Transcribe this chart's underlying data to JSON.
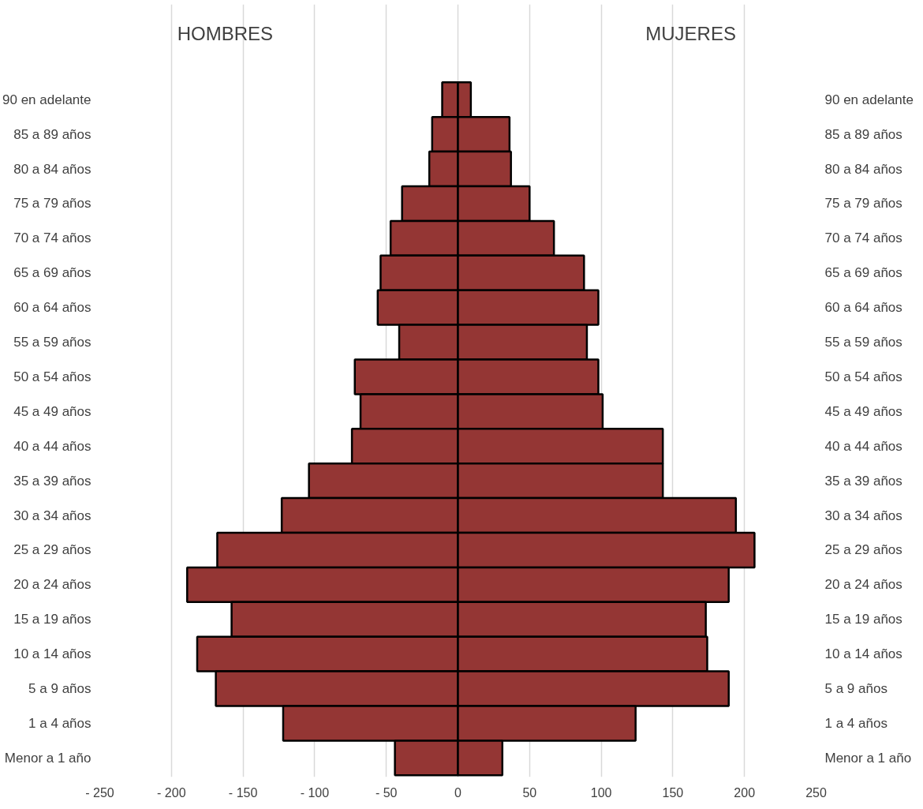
{
  "chart_data": {
    "type": "bar",
    "orientation": "horizontal",
    "grid": "x",
    "stacked": true,
    "annotations": [
      "HOMBRES",
      "MUJERES"
    ],
    "categories": [
      "90 en adelante",
      "85 a 89 años",
      "80 a 84 años",
      "75 a 79 años",
      "70 a 74 años",
      "65 a 69 años",
      "60 a 64 años",
      "55 a 59 años",
      "50 a 54 años",
      "45 a 49 años",
      "40 a 44 años",
      "35 a 39 años",
      "30 a 34 años",
      "25 a 29 años",
      "20 a 24 años",
      "15 a 19 años",
      "10 a 14 años",
      "5 a 9 años",
      "1 a 4 años",
      "Menor a 1 año"
    ],
    "series": [
      {
        "color": "#943634",
        "values": [
          -11,
          -18,
          -20,
          -39,
          -47,
          -54,
          -56,
          -41,
          -72,
          -68,
          -74,
          -104,
          -123,
          -168,
          -189,
          -158,
          -182,
          -169,
          -122,
          -44
        ]
      },
      {
        "color": "#943634",
        "values": [
          9,
          36,
          37,
          50,
          67,
          88,
          98,
          90,
          98,
          101,
          143,
          143,
          194,
          207,
          189,
          173,
          174,
          189,
          124,
          31
        ]
      }
    ],
    "xlim": [
      -250,
      250
    ],
    "xticks": [
      {
        "value": -250,
        "label": "- 250"
      },
      {
        "value": -200,
        "label": "- 200"
      },
      {
        "value": -150,
        "label": "- 150"
      },
      {
        "value": -100,
        "label": "- 100"
      },
      {
        "value": -50,
        "label": "- 50"
      },
      0,
      50,
      100,
      150,
      200,
      250
    ]
  }
}
